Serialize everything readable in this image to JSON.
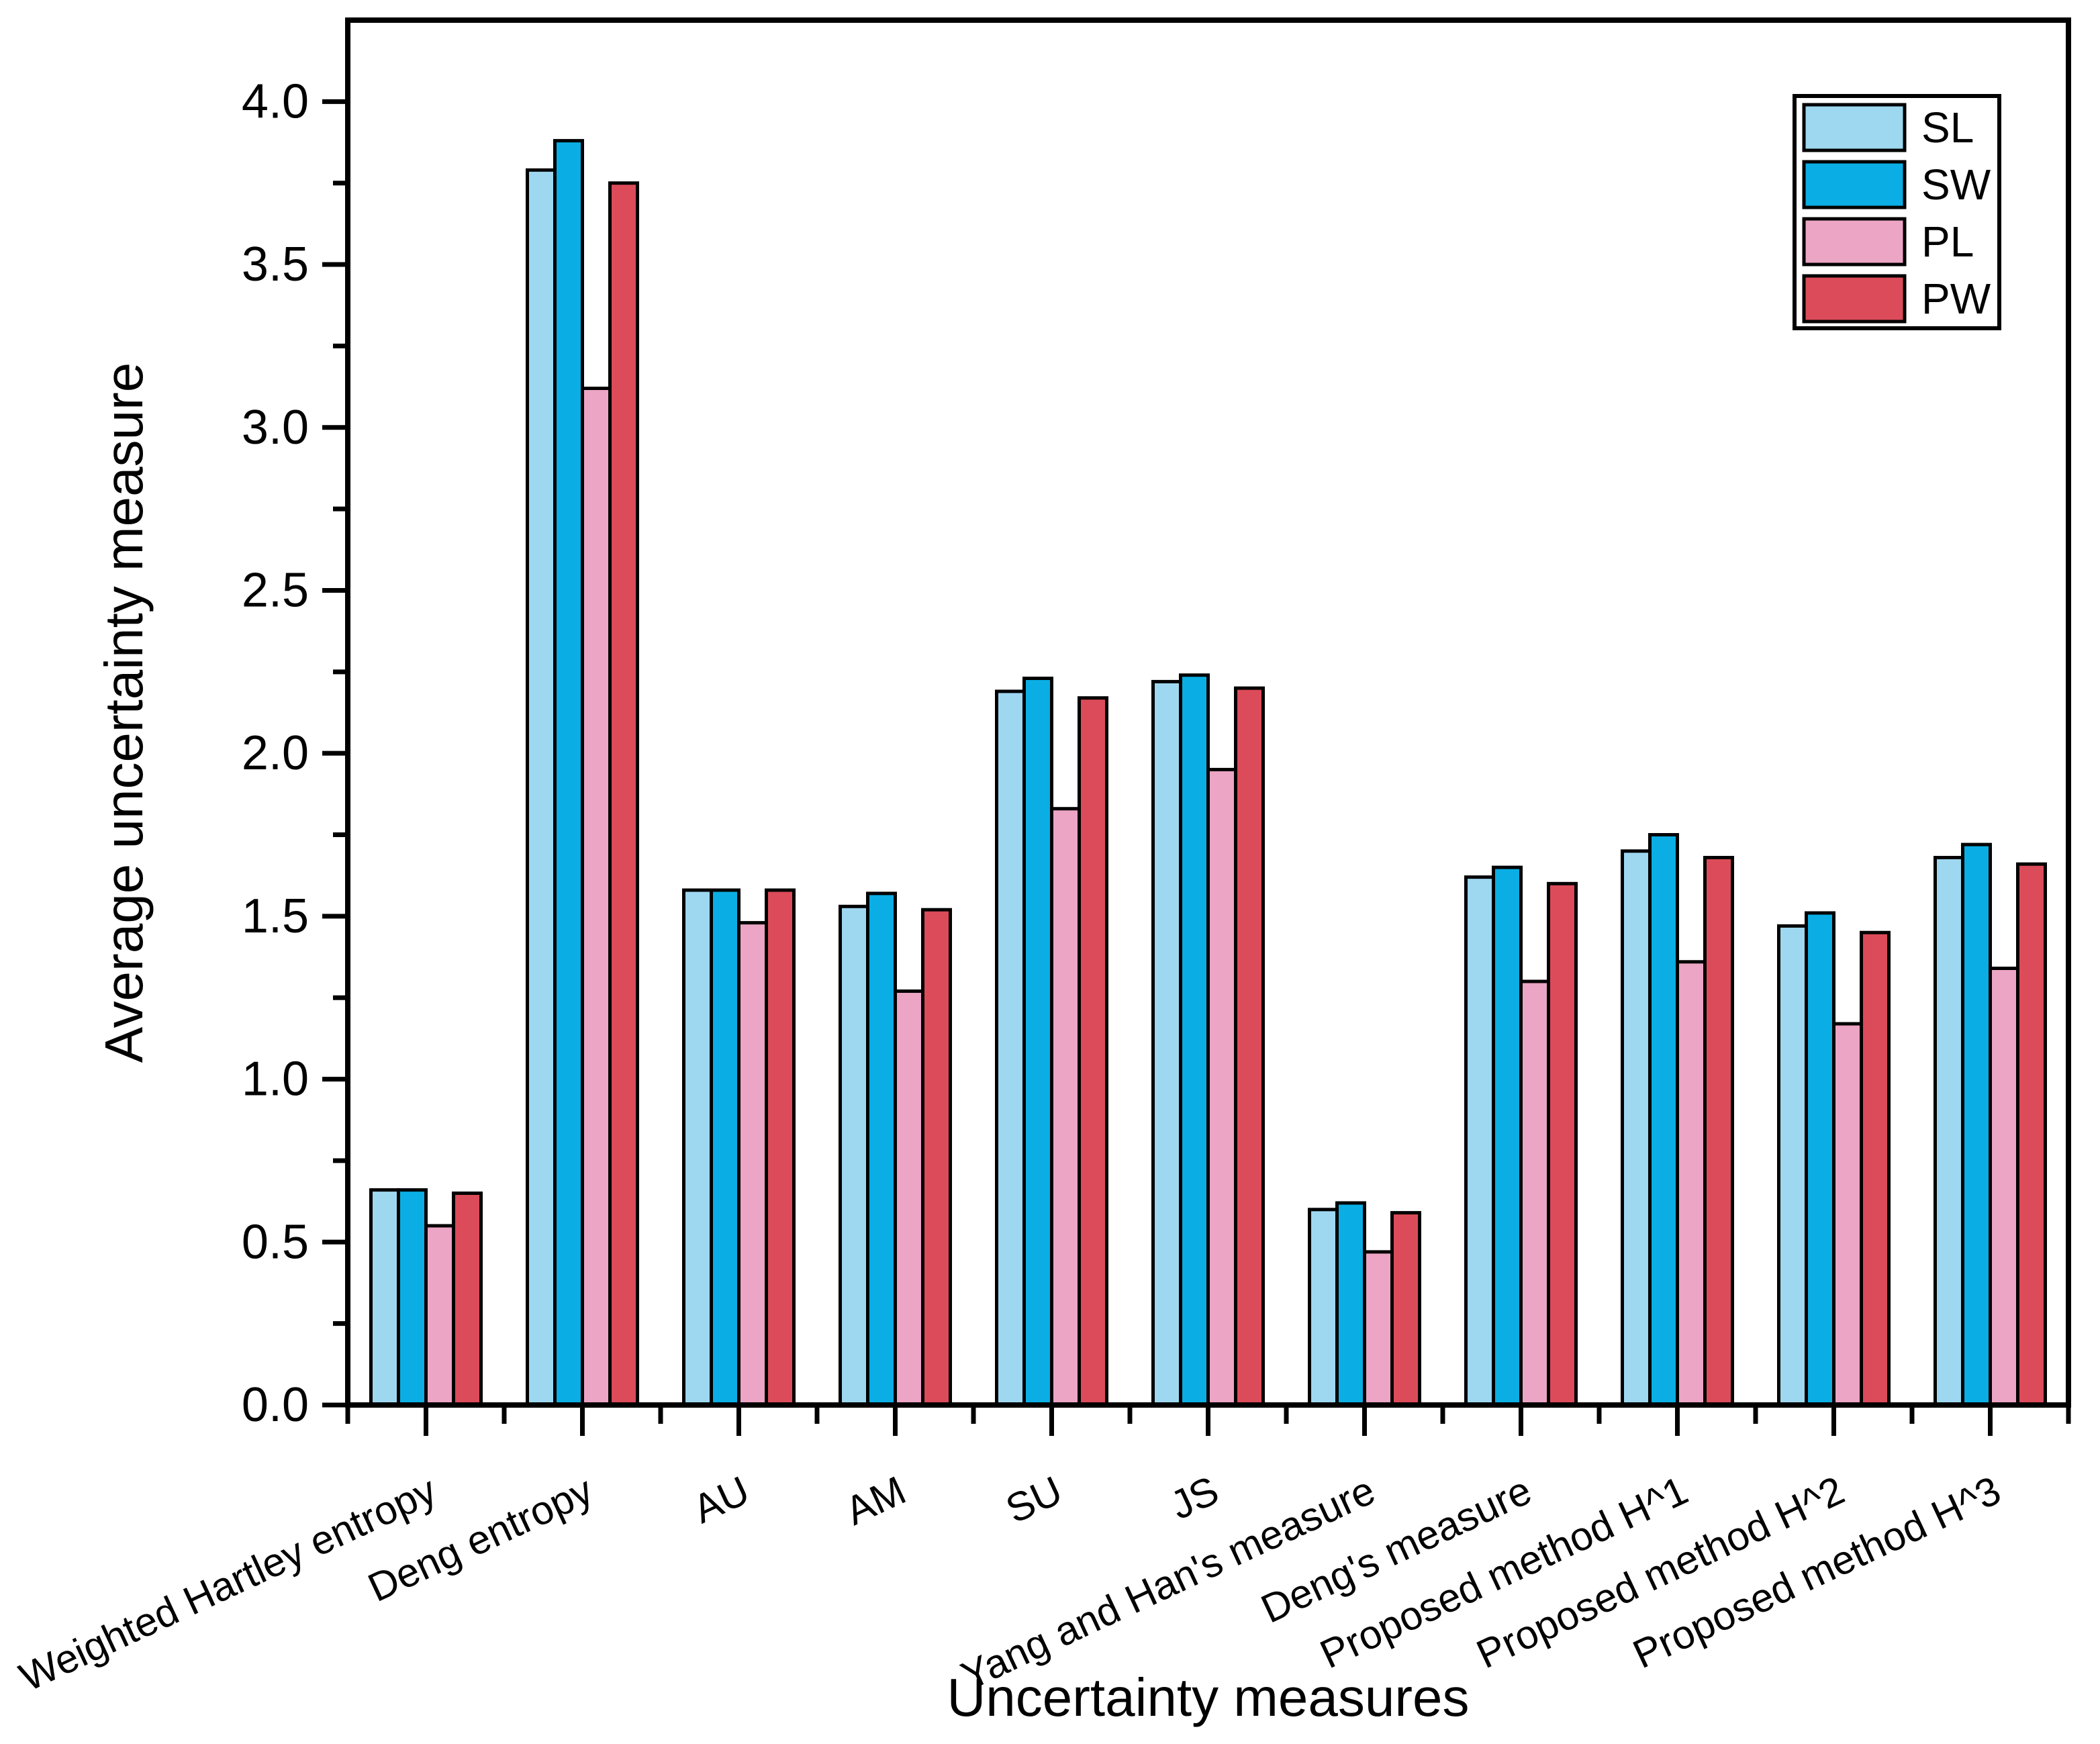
{
  "chart_data": {
    "type": "bar",
    "title": "",
    "xlabel": "Uncertainty measures",
    "ylabel": "Average uncertainty measure",
    "categories": [
      "Weighted Hartley entropy",
      "Deng entropy",
      "AU",
      "AM",
      "SU",
      "JS",
      "Yang and Han's measure",
      "Deng's measure",
      "Proposed method H^1",
      "Proposed method H^2",
      "Proposed method H^3"
    ],
    "series": [
      {
        "name": "SL",
        "color": "#9ED7F0",
        "values": [
          0.66,
          3.79,
          1.58,
          1.53,
          2.19,
          2.22,
          0.6,
          1.62,
          1.7,
          1.47,
          1.68
        ]
      },
      {
        "name": "SW",
        "color": "#0AAEE4",
        "values": [
          0.66,
          3.88,
          1.58,
          1.57,
          2.23,
          2.24,
          0.62,
          1.65,
          1.75,
          1.51,
          1.72
        ]
      },
      {
        "name": "PL",
        "color": "#ECA5C4",
        "values": [
          0.55,
          3.12,
          1.48,
          1.27,
          1.83,
          1.95,
          0.47,
          1.3,
          1.36,
          1.17,
          1.34
        ]
      },
      {
        "name": "PW",
        "color": "#DC4B59",
        "values": [
          0.65,
          3.75,
          1.58,
          1.52,
          2.17,
          2.2,
          0.59,
          1.6,
          1.68,
          1.45,
          1.66
        ]
      }
    ],
    "ylim": [
      0,
      4.25
    ],
    "ytick_step": 0.5,
    "ytick_minor_step": 0.25,
    "ytick_label_decimals": 1,
    "axis_color": "#000000",
    "bar_border_color": "#000000",
    "background_color": "#FFFFFF",
    "grid": false,
    "legend_position": "top-right",
    "x_label_rotation_deg": 25
  },
  "legend": {
    "items": [
      "SL",
      "SW",
      "PL",
      "PW"
    ]
  }
}
